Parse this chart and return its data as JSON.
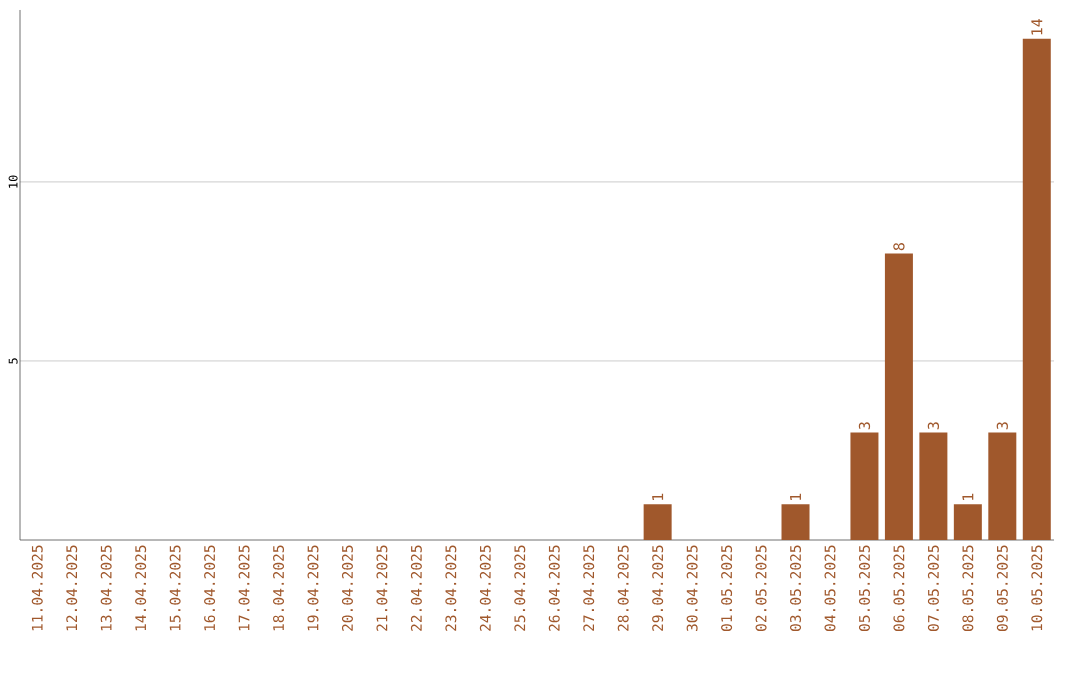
{
  "chart_data": {
    "type": "bar",
    "categories": [
      "11.04.2025",
      "12.04.2025",
      "13.04.2025",
      "14.04.2025",
      "15.04.2025",
      "16.04.2025",
      "17.04.2025",
      "18.04.2025",
      "19.04.2025",
      "20.04.2025",
      "21.04.2025",
      "22.04.2025",
      "23.04.2025",
      "24.04.2025",
      "25.04.2025",
      "26.04.2025",
      "27.04.2025",
      "28.04.2025",
      "29.04.2025",
      "30.04.2025",
      "01.05.2025",
      "02.05.2025",
      "03.05.2025",
      "04.05.2025",
      "05.05.2025",
      "06.05.2025",
      "07.05.2025",
      "08.05.2025",
      "09.05.2025",
      "10.05.2025"
    ],
    "values": [
      0,
      0,
      0,
      0,
      0,
      0,
      0,
      0,
      0,
      0,
      0,
      0,
      0,
      0,
      0,
      0,
      0,
      0,
      1,
      0,
      0,
      0,
      1,
      0,
      3,
      8,
      3,
      1,
      3,
      14
    ],
    "value_labels": [
      null,
      null,
      null,
      null,
      null,
      null,
      null,
      null,
      null,
      null,
      null,
      null,
      null,
      null,
      null,
      null,
      null,
      null,
      "1",
      null,
      null,
      null,
      "1",
      null,
      "3",
      "8",
      "3",
      "1",
      "3",
      "14"
    ],
    "color": "#a0582c",
    "ylim": [
      0,
      14.8
    ],
    "yticks": [
      5,
      10
    ],
    "grid": "y"
  }
}
